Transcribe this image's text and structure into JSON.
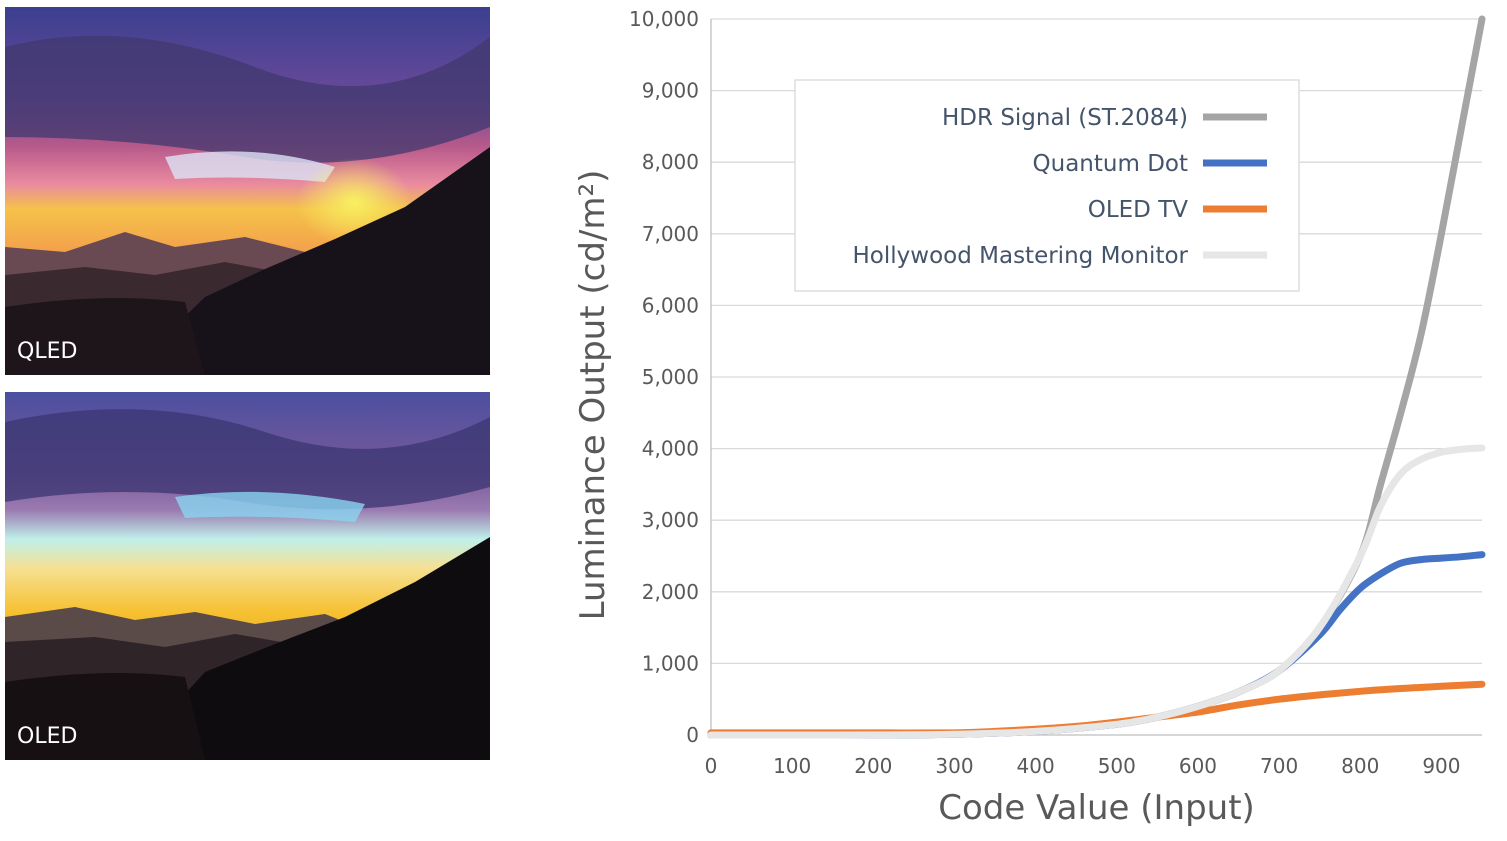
{
  "photos": [
    {
      "label": "QLED"
    },
    {
      "label": "OLED"
    }
  ],
  "chart_data": {
    "type": "line",
    "title": "",
    "xlabel": "Code Value (Input)",
    "ylabel": "Luminance Output (cd/m²)",
    "xlim": [
      0,
      950
    ],
    "ylim": [
      0,
      10000
    ],
    "xticks": [
      0,
      100,
      200,
      300,
      400,
      500,
      600,
      700,
      800,
      900
    ],
    "yticks": [
      0,
      1000,
      2000,
      3000,
      4000,
      5000,
      6000,
      7000,
      8000,
      9000,
      10000
    ],
    "xtick_labels": [
      "0",
      "100",
      "200",
      "300",
      "400",
      "500",
      "600",
      "700",
      "800",
      "900"
    ],
    "ytick_labels": [
      "0",
      "1,000",
      "2,000",
      "3,000",
      "4,000",
      "5,000",
      "6,000",
      "7,000",
      "8,000",
      "9,000",
      "10,000"
    ],
    "grid": true,
    "legend": "top-center",
    "series": [
      {
        "name": "HDR Signal (ST.2084)",
        "color": "#a5a5a5",
        "x": [
          0,
          100,
          200,
          300,
          400,
          500,
          550,
          600,
          650,
          700,
          750,
          800,
          825,
          850,
          875,
          900,
          925,
          950
        ],
        "y": [
          0,
          0,
          2,
          10,
          50,
          150,
          250,
          400,
          600,
          900,
          1500,
          2500,
          3500,
          4500,
          5600,
          7000,
          8500,
          10000
        ]
      },
      {
        "name": "Quantum Dot",
        "color": "#4472c4",
        "x": [
          0,
          100,
          200,
          300,
          400,
          500,
          550,
          600,
          650,
          700,
          750,
          775,
          800,
          825,
          850,
          875,
          900,
          925,
          950
        ],
        "y": [
          0,
          0,
          2,
          10,
          50,
          150,
          250,
          400,
          600,
          900,
          1400,
          1750,
          2050,
          2250,
          2400,
          2450,
          2470,
          2490,
          2520
        ]
      },
      {
        "name": "OLED TV",
        "color": "#ed7d31",
        "x": [
          0,
          100,
          200,
          300,
          350,
          400,
          450,
          500,
          550,
          600,
          650,
          700,
          750,
          800,
          850,
          900,
          950
        ],
        "y": [
          30,
          30,
          30,
          30,
          50,
          80,
          120,
          180,
          250,
          320,
          420,
          500,
          560,
          610,
          650,
          680,
          710
        ]
      },
      {
        "name": "Hollywood Mastering Monitor",
        "color": "#e7e6e6",
        "x": [
          0,
          100,
          200,
          300,
          400,
          500,
          550,
          600,
          650,
          700,
          750,
          800,
          825,
          850,
          875,
          900,
          925,
          950
        ],
        "y": [
          0,
          0,
          2,
          10,
          50,
          150,
          250,
          400,
          600,
          900,
          1500,
          2500,
          3200,
          3650,
          3850,
          3950,
          3990,
          4010
        ]
      }
    ]
  }
}
